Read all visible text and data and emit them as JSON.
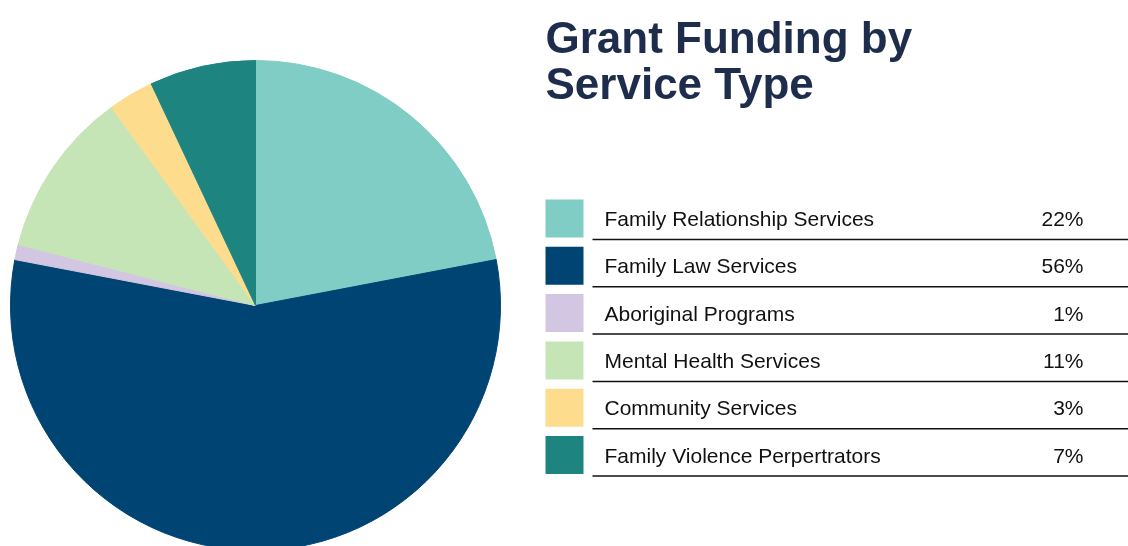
{
  "chart_data": {
    "type": "pie",
    "title": "Grant Funding by Service Type",
    "categories": [
      "Family Relationship Services",
      "Family Law Services",
      "Aboriginal Programs",
      "Mental Health Services",
      "Community Services",
      "Family Violence Perpertrators"
    ],
    "values": [
      22,
      56,
      1,
      11,
      3,
      7
    ],
    "value_labels": [
      "22%",
      "56%",
      "1%",
      "11%",
      "3%",
      "7%"
    ],
    "colors": [
      "#7fcdc5",
      "#004474",
      "#d3c6e2",
      "#c5e5b7",
      "#fddc8e",
      "#1e8480"
    ],
    "legend": "right"
  }
}
